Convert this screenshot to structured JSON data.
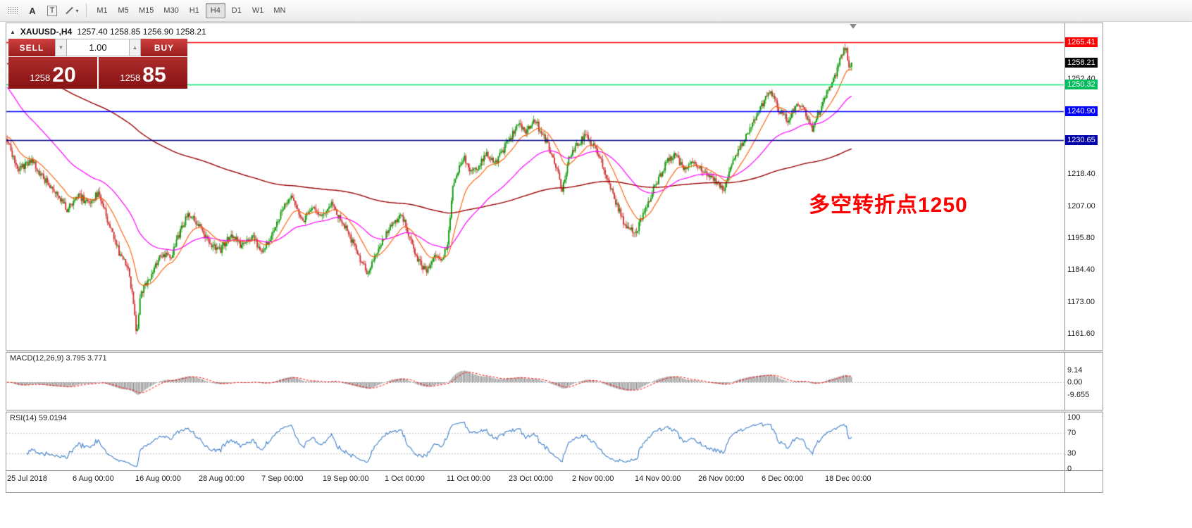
{
  "toolbar": {
    "icon_a": "A",
    "icon_t": "T",
    "caret": "▾",
    "timeframes": [
      "M1",
      "M5",
      "M15",
      "M30",
      "H1",
      "H4",
      "D1",
      "W1",
      "MN"
    ],
    "active_timeframe": "H4"
  },
  "header": {
    "collapse_icon": "▲",
    "title": "XAUUSD-,H4",
    "ohlc": "1257.40 1258.85 1256.90 1258.21"
  },
  "trade_panel": {
    "sell_label": "SELL",
    "buy_label": "BUY",
    "volume": "1.00",
    "caret_down": "▼",
    "caret_up": "▲",
    "sell_price_small": "1258",
    "sell_price_big": "20",
    "buy_price_small": "1258",
    "buy_price_big": "85"
  },
  "annotation": {
    "text": "多空转折点1250",
    "color": "#FF0000"
  },
  "macd_panel": {
    "label": "MACD(12,26,9) 3.795 3.771",
    "axis_labels": [
      "9.14",
      "0.00",
      "-9.655"
    ]
  },
  "rsi_panel": {
    "label": "RSI(14) 59.0194",
    "axis_labels": [
      "100",
      "70",
      "30",
      "0"
    ]
  },
  "chart_data": {
    "type": "candlestick",
    "symbol": "XAUUSD-",
    "timeframe": "H4",
    "current": {
      "open": "1257.40",
      "high": "1258.85",
      "low": "1256.90",
      "close": "1258.21"
    },
    "colors": {
      "up": "#089800",
      "down": "#CC2F2F",
      "ma_fast": "#FF5A00",
      "ma_mid": "#FF00FF",
      "ma_slow": "#990000",
      "macd_hist": "#7F7F7F",
      "macd_signal": "#FF0000",
      "rsi": "#4080C8",
      "level_dash": "#C2C2C2"
    },
    "price_axis": {
      "plain_ticks": [
        "1252.40",
        "1218.40",
        "1207.00",
        "1195.80",
        "1184.40",
        "1173.00",
        "1161.60"
      ],
      "levels": [
        {
          "label": "1265.41",
          "price": 1265.41,
          "box": "#FF0000",
          "line": "#FF0000"
        },
        {
          "label": "1250.32",
          "price": 1250.32,
          "box": "#00BE5E",
          "line": "#00E673"
        },
        {
          "label": "1240.90",
          "price": 1240.9,
          "box": "#0000FF",
          "line": "#0000FF"
        },
        {
          "label": "1230.65",
          "price": 1230.65,
          "box": "#0000AA",
          "line": "#000090"
        },
        {
          "label": "1258.21",
          "price": 1258.21,
          "box": "#000000",
          "line": null
        }
      ]
    },
    "time_ticks": [
      {
        "x": 10,
        "label": "25 Jul 2018"
      },
      {
        "x": 103,
        "label": "6 Aug 00:00"
      },
      {
        "x": 192,
        "label": "16 Aug 00:00"
      },
      {
        "x": 282,
        "label": "28 Aug 00:00"
      },
      {
        "x": 371,
        "label": "7 Sep 00:00"
      },
      {
        "x": 458,
        "label": "19 Sep 00:00"
      },
      {
        "x": 546,
        "label": "1 Oct 00:00"
      },
      {
        "x": 634,
        "label": "11 Oct 00:00"
      },
      {
        "x": 722,
        "label": "23 Oct 00:00"
      },
      {
        "x": 812,
        "label": "2 Nov 00:00"
      },
      {
        "x": 901,
        "label": "14 Nov 00:00"
      },
      {
        "x": 991,
        "label": "26 Nov 00:00"
      },
      {
        "x": 1081,
        "label": "6 Dec 00:00"
      },
      {
        "x": 1171,
        "label": "18 Dec 00:00"
      }
    ],
    "x_range": [
      10,
      1210
    ],
    "candle_step": 1.85,
    "price_path": [
      [
        10,
        1231
      ],
      [
        25,
        1220
      ],
      [
        45,
        1223
      ],
      [
        62,
        1217
      ],
      [
        80,
        1212
      ],
      [
        95,
        1206
      ],
      [
        110,
        1211
      ],
      [
        126,
        1208
      ],
      [
        140,
        1212
      ],
      [
        155,
        1200
      ],
      [
        170,
        1190
      ],
      [
        182,
        1186
      ],
      [
        189,
        1173
      ],
      [
        194,
        1162
      ],
      [
        200,
        1176
      ],
      [
        212,
        1181
      ],
      [
        228,
        1190
      ],
      [
        242,
        1189
      ],
      [
        258,
        1199
      ],
      [
        268,
        1205
      ],
      [
        283,
        1200
      ],
      [
        298,
        1193
      ],
      [
        312,
        1191
      ],
      [
        328,
        1197
      ],
      [
        342,
        1193
      ],
      [
        358,
        1196
      ],
      [
        372,
        1191
      ],
      [
        388,
        1198
      ],
      [
        402,
        1206
      ],
      [
        415,
        1210
      ],
      [
        430,
        1202
      ],
      [
        445,
        1206
      ],
      [
        458,
        1204
      ],
      [
        470,
        1208
      ],
      [
        482,
        1203
      ],
      [
        497,
        1196
      ],
      [
        512,
        1188
      ],
      [
        522,
        1183
      ],
      [
        535,
        1191
      ],
      [
        546,
        1196
      ],
      [
        558,
        1201
      ],
      [
        570,
        1204
      ],
      [
        582,
        1196
      ],
      [
        595,
        1187
      ],
      [
        605,
        1184
      ],
      [
        618,
        1190
      ],
      [
        628,
        1188
      ],
      [
        636,
        1194
      ],
      [
        642,
        1213
      ],
      [
        650,
        1220
      ],
      [
        660,
        1224
      ],
      [
        670,
        1219
      ],
      [
        680,
        1222
      ],
      [
        692,
        1226
      ],
      [
        702,
        1222
      ],
      [
        714,
        1227
      ],
      [
        724,
        1231
      ],
      [
        736,
        1237
      ],
      [
        746,
        1233
      ],
      [
        758,
        1239
      ],
      [
        766,
        1234
      ],
      [
        778,
        1229
      ],
      [
        790,
        1220
      ],
      [
        798,
        1213
      ],
      [
        808,
        1224
      ],
      [
        818,
        1229
      ],
      [
        832,
        1232
      ],
      [
        845,
        1228
      ],
      [
        858,
        1220
      ],
      [
        872,
        1210
      ],
      [
        886,
        1201
      ],
      [
        902,
        1197
      ],
      [
        915,
        1206
      ],
      [
        930,
        1214
      ],
      [
        945,
        1222
      ],
      [
        958,
        1226
      ],
      [
        970,
        1220
      ],
      [
        984,
        1223
      ],
      [
        996,
        1220
      ],
      [
        1008,
        1217
      ],
      [
        1020,
        1215
      ],
      [
        1028,
        1213
      ],
      [
        1040,
        1223
      ],
      [
        1052,
        1229
      ],
      [
        1065,
        1235
      ],
      [
        1078,
        1241
      ],
      [
        1088,
        1246
      ],
      [
        1096,
        1247
      ],
      [
        1106,
        1241
      ],
      [
        1118,
        1238
      ],
      [
        1130,
        1243
      ],
      [
        1142,
        1241
      ],
      [
        1152,
        1234
      ],
      [
        1163,
        1241
      ],
      [
        1174,
        1248
      ],
      [
        1185,
        1253
      ],
      [
        1194,
        1261
      ],
      [
        1200,
        1264
      ],
      [
        1205,
        1257
      ],
      [
        1210,
        1258.2
      ]
    ],
    "moving_averages": [
      {
        "name": "fast",
        "alpha": 0.1,
        "init": 1232
      },
      {
        "name": "medium",
        "alpha": 0.03,
        "init": 1250
      },
      {
        "name": "slow",
        "alpha": 0.006,
        "init": 1258
      }
    ],
    "macd": {
      "params": [
        12,
        26,
        9
      ],
      "values": [
        3.795,
        3.771
      ]
    },
    "rsi": {
      "period": 14,
      "value": 59.0194,
      "levels": [
        70,
        30
      ]
    }
  }
}
